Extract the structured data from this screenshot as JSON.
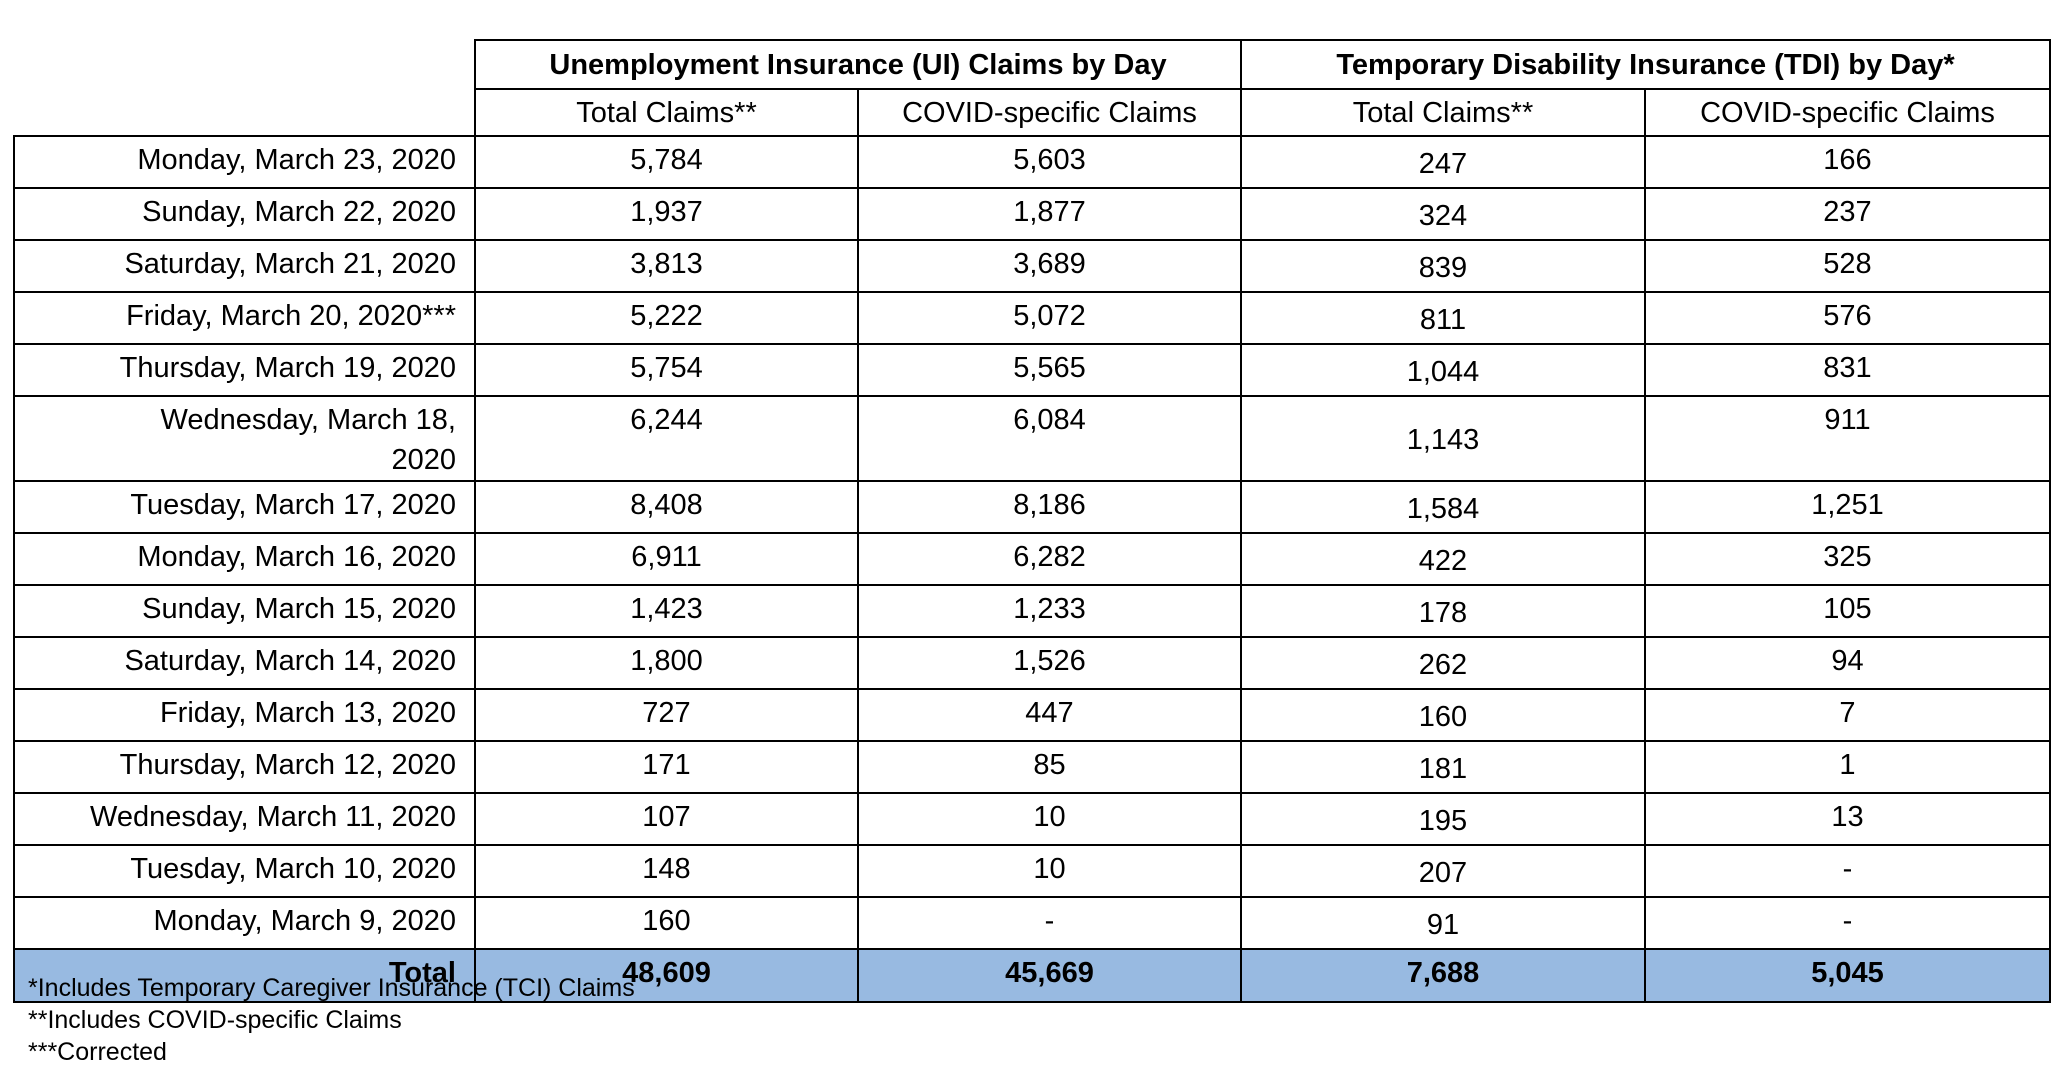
{
  "table": {
    "groups": [
      "Unemployment Insurance (UI) Claims by Day",
      "Temporary Disability Insurance (TDI) by Day*"
    ],
    "subheaders": [
      "Total Claims**",
      "COVID-specific Claims",
      "Total Claims**",
      "COVID-specific Claims"
    ],
    "rows": [
      [
        "Monday, March 23, 2020",
        "5,784",
        "5,603",
        "247",
        "166"
      ],
      [
        "Sunday, March 22, 2020",
        "1,937",
        "1,877",
        "324",
        "237"
      ],
      [
        "Saturday, March 21, 2020",
        "3,813",
        "3,689",
        "839",
        "528"
      ],
      [
        "Friday, March 20, 2020***",
        "5,222",
        "5,072",
        "811",
        "576"
      ],
      [
        "Thursday, March 19, 2020",
        "5,754",
        "5,565",
        "1,044",
        "831"
      ],
      [
        "Wednesday, March 18, 2020",
        "6,244",
        "6,084",
        "1,143",
        "911"
      ],
      [
        "Tuesday, March 17, 2020",
        "8,408",
        "8,186",
        "1,584",
        "1,251"
      ],
      [
        "Monday, March 16, 2020",
        "6,911",
        "6,282",
        "422",
        "325"
      ],
      [
        "Sunday, March 15, 2020",
        "1,423",
        "1,233",
        "178",
        "105"
      ],
      [
        "Saturday, March 14, 2020",
        "1,800",
        "1,526",
        "262",
        "94"
      ],
      [
        "Friday, March 13, 2020",
        "727",
        "447",
        "160",
        "7"
      ],
      [
        "Thursday, March 12, 2020",
        "171",
        "85",
        "181",
        "1"
      ],
      [
        "Wednesday, March 11, 2020",
        "107",
        "10",
        "195",
        "13"
      ],
      [
        "Tuesday, March 10, 2020",
        "148",
        "10",
        "207",
        "-"
      ],
      [
        "Monday, March 9, 2020",
        "160",
        "-",
        "91",
        "-"
      ]
    ],
    "total": [
      "Total",
      "48,609",
      "45,669",
      "7,688",
      "5,045"
    ]
  },
  "footnotes": [
    "*Includes Temporary Caregiver Insurance (TCI) Claims",
    "**Includes COVID-specific Claims",
    "***Corrected"
  ]
}
